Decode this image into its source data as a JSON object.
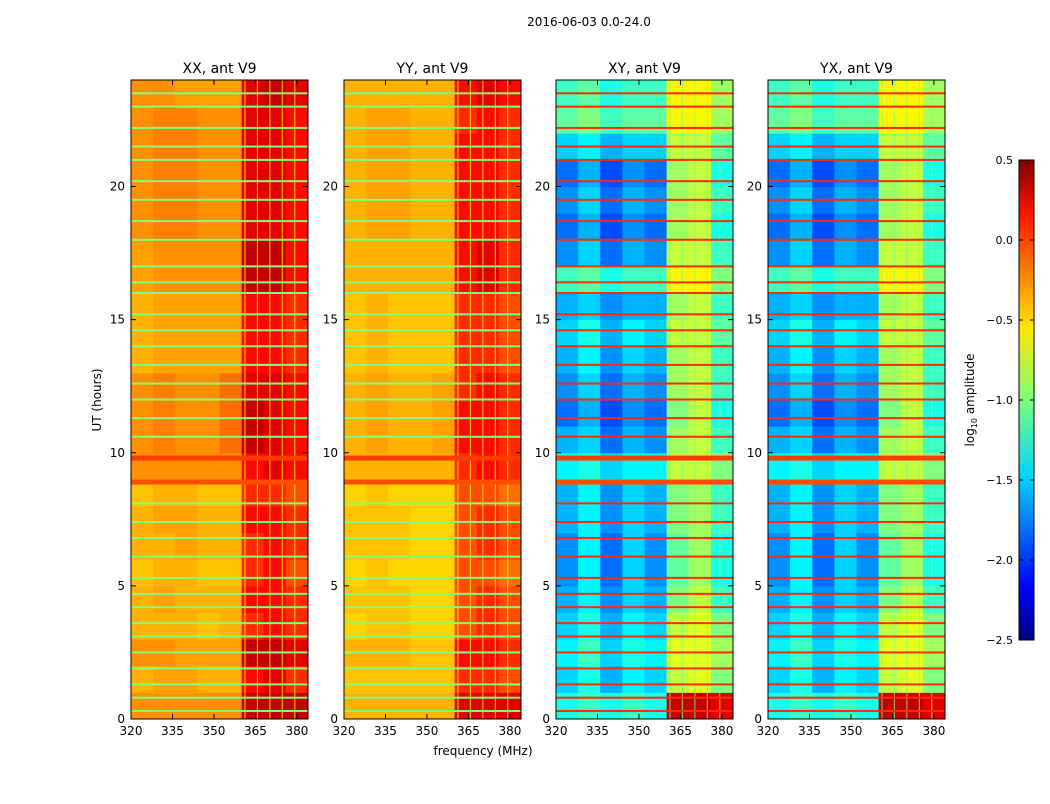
{
  "chart_data": {
    "type": "heatmap",
    "suptitle": "2016-06-03 0.0-24.0",
    "xlabel": "frequency (MHz)",
    "ylabel": "UT (hours)",
    "xlim": [
      320,
      384
    ],
    "ylim": [
      0,
      24
    ],
    "xticks": [
      320,
      335,
      350,
      365,
      380
    ],
    "yticks": [
      0,
      5,
      10,
      15,
      20
    ],
    "freq_bin_edges": [
      320,
      328,
      336,
      344,
      352,
      360,
      368,
      376,
      384
    ],
    "time_bin_hours": 1,
    "line_times": [
      0.3,
      0.8,
      1.3,
      1.9,
      2.5,
      3.1,
      3.6,
      4.2,
      4.7,
      5.3,
      6.1,
      6.8,
      7.4,
      8.1,
      10.6,
      11.3,
      12.0,
      12.6,
      13.3,
      14.0,
      14.6,
      15.2,
      16.0,
      16.4,
      17.0,
      18.0,
      18.7,
      19.5,
      20.2,
      21.0,
      21.5,
      22.2,
      23.0,
      23.5
    ],
    "bands": [
      {
        "t": 8.9,
        "value": -0.1
      },
      {
        "t": 9.8,
        "value": -0.05
      }
    ],
    "colorbar": {
      "label": "log10 amplitude",
      "label_main": "log",
      "label_sub": "10",
      "label_rest": " amplitude",
      "range": [
        -2.5,
        0.5
      ],
      "ticks": [
        "0.5",
        "0.0",
        "−0.5",
        "−1.0",
        "−1.5",
        "−2.0",
        "−2.5"
      ],
      "tick_values": [
        0.5,
        0.0,
        -0.5,
        -1.0,
        -1.5,
        -2.0,
        -2.5
      ],
      "colormap": "jet"
    },
    "panels": [
      {
        "title": "XX, ant V9",
        "line_value": -1.0,
        "rows": [
          [
            -0.3,
            -0.3,
            -0.3,
            -0.3,
            -0.3,
            0.3,
            0.3,
            0.3
          ],
          [
            -0.4,
            -0.35,
            -0.35,
            -0.4,
            -0.4,
            0.1,
            0.2,
            0.0
          ],
          [
            -0.3,
            -0.3,
            -0.35,
            -0.35,
            -0.35,
            0.3,
            0.3,
            0.2
          ],
          [
            -0.4,
            -0.4,
            -0.4,
            -0.45,
            -0.4,
            0.0,
            0.1,
            0.0
          ],
          [
            -0.4,
            -0.35,
            -0.4,
            -0.4,
            -0.4,
            0.1,
            0.1,
            0.0
          ],
          [
            -0.45,
            -0.4,
            -0.4,
            -0.45,
            -0.45,
            0.0,
            0.1,
            -0.1
          ],
          [
            -0.4,
            -0.4,
            -0.35,
            -0.4,
            -0.4,
            0.0,
            0.1,
            0.0
          ],
          [
            -0.4,
            -0.35,
            -0.35,
            -0.4,
            -0.4,
            0.1,
            0.1,
            0.0
          ],
          [
            -0.45,
            -0.4,
            -0.4,
            -0.45,
            -0.45,
            0.0,
            0.0,
            -0.1
          ],
          [
            -0.3,
            -0.3,
            -0.3,
            -0.3,
            -0.3,
            0.1,
            0.2,
            0.1
          ],
          [
            -0.3,
            -0.25,
            -0.3,
            -0.3,
            -0.2,
            0.3,
            0.2,
            0.1
          ],
          [
            -0.3,
            -0.25,
            -0.3,
            -0.3,
            -0.2,
            0.3,
            0.2,
            0.1
          ],
          [
            -0.3,
            -0.25,
            -0.3,
            -0.3,
            -0.2,
            0.2,
            0.2,
            0.1
          ],
          [
            -0.4,
            -0.35,
            -0.35,
            -0.35,
            -0.35,
            0.1,
            0.1,
            0.0
          ],
          [
            -0.4,
            -0.35,
            -0.35,
            -0.35,
            -0.35,
            0.1,
            0.1,
            0.0
          ],
          [
            -0.4,
            -0.35,
            -0.35,
            -0.35,
            -0.35,
            0.1,
            0.1,
            0.0
          ],
          [
            -0.35,
            -0.3,
            -0.3,
            -0.3,
            -0.3,
            0.3,
            0.3,
            0.1
          ],
          [
            -0.35,
            -0.3,
            -0.3,
            -0.3,
            -0.3,
            0.3,
            0.3,
            0.1
          ],
          [
            -0.3,
            -0.25,
            -0.25,
            -0.3,
            -0.3,
            0.2,
            0.2,
            0.1
          ],
          [
            -0.3,
            -0.25,
            -0.25,
            -0.3,
            -0.3,
            0.2,
            0.2,
            0.1
          ],
          [
            -0.3,
            -0.25,
            -0.25,
            -0.3,
            -0.3,
            0.2,
            0.2,
            0.1
          ],
          [
            -0.3,
            -0.25,
            -0.25,
            -0.3,
            -0.3,
            0.2,
            0.2,
            0.1
          ],
          [
            -0.3,
            -0.25,
            -0.25,
            -0.3,
            -0.3,
            0.2,
            0.2,
            0.1
          ],
          [
            -0.3,
            -0.3,
            -0.35,
            -0.35,
            -0.35,
            0.2,
            0.3,
            0.2
          ]
        ]
      },
      {
        "title": "YY, ant V9",
        "line_value": -1.0,
        "rows": [
          [
            -0.4,
            -0.4,
            -0.4,
            -0.4,
            -0.4,
            0.2,
            0.2,
            0.2
          ],
          [
            -0.45,
            -0.45,
            -0.45,
            -0.45,
            -0.45,
            0.0,
            0.0,
            -0.1
          ],
          [
            -0.4,
            -0.4,
            -0.4,
            -0.45,
            -0.45,
            0.1,
            0.1,
            0.0
          ],
          [
            -0.5,
            -0.45,
            -0.45,
            -0.5,
            -0.5,
            -0.1,
            0.0,
            -0.1
          ],
          [
            -0.45,
            -0.45,
            -0.45,
            -0.5,
            -0.5,
            -0.1,
            0.0,
            -0.1
          ],
          [
            -0.5,
            -0.45,
            -0.5,
            -0.5,
            -0.5,
            -0.1,
            -0.1,
            -0.2
          ],
          [
            -0.45,
            -0.45,
            -0.45,
            -0.5,
            -0.5,
            -0.1,
            0.0,
            -0.1
          ],
          [
            -0.45,
            -0.45,
            -0.45,
            -0.5,
            -0.5,
            -0.1,
            0.0,
            -0.1
          ],
          [
            -0.5,
            -0.45,
            -0.5,
            -0.5,
            -0.5,
            -0.1,
            -0.1,
            -0.2
          ],
          [
            -0.4,
            -0.4,
            -0.4,
            -0.4,
            -0.4,
            0.0,
            0.1,
            0.0
          ],
          [
            -0.4,
            -0.35,
            -0.4,
            -0.4,
            -0.35,
            0.1,
            0.1,
            0.0
          ],
          [
            -0.4,
            -0.35,
            -0.4,
            -0.4,
            -0.35,
            0.1,
            0.1,
            0.0
          ],
          [
            -0.4,
            -0.35,
            -0.4,
            -0.4,
            -0.35,
            0.0,
            0.1,
            0.0
          ],
          [
            -0.45,
            -0.4,
            -0.45,
            -0.45,
            -0.45,
            0.0,
            0.0,
            -0.1
          ],
          [
            -0.45,
            -0.4,
            -0.45,
            -0.45,
            -0.45,
            0.0,
            0.0,
            -0.1
          ],
          [
            -0.45,
            -0.4,
            -0.45,
            -0.45,
            -0.45,
            0.0,
            0.0,
            -0.1
          ],
          [
            -0.4,
            -0.4,
            -0.4,
            -0.4,
            -0.4,
            0.1,
            0.2,
            0.0
          ],
          [
            -0.4,
            -0.4,
            -0.4,
            -0.4,
            -0.4,
            0.1,
            0.2,
            0.0
          ],
          [
            -0.4,
            -0.35,
            -0.35,
            -0.4,
            -0.4,
            0.1,
            0.1,
            0.0
          ],
          [
            -0.4,
            -0.35,
            -0.35,
            -0.4,
            -0.4,
            0.1,
            0.1,
            0.0
          ],
          [
            -0.4,
            -0.35,
            -0.35,
            -0.4,
            -0.4,
            0.1,
            0.1,
            0.0
          ],
          [
            -0.4,
            -0.35,
            -0.35,
            -0.4,
            -0.4,
            0.1,
            0.1,
            0.0
          ],
          [
            -0.4,
            -0.35,
            -0.35,
            -0.4,
            -0.4,
            0.0,
            0.1,
            0.0
          ],
          [
            -0.4,
            -0.4,
            -0.4,
            -0.4,
            -0.4,
            0.1,
            0.2,
            0.1
          ]
        ]
      },
      {
        "title": "XY, ant V9",
        "line_value": 0.0,
        "rows": [
          [
            -1.3,
            -1.2,
            -1.3,
            -1.2,
            -1.3,
            0.3,
            0.3,
            0.2
          ],
          [
            -1.5,
            -1.3,
            -1.6,
            -1.4,
            -1.5,
            -0.8,
            -0.7,
            -1.0
          ],
          [
            -1.4,
            -1.2,
            -1.5,
            -1.3,
            -1.4,
            -0.7,
            -0.7,
            -0.9
          ],
          [
            -1.5,
            -1.3,
            -1.6,
            -1.4,
            -1.5,
            -0.8,
            -0.7,
            -1.0
          ],
          [
            -1.6,
            -1.4,
            -1.7,
            -1.5,
            -1.6,
            -1.0,
            -0.8,
            -1.2
          ],
          [
            -1.7,
            -1.4,
            -1.8,
            -1.5,
            -1.7,
            -1.1,
            -0.9,
            -1.3
          ],
          [
            -1.7,
            -1.4,
            -1.8,
            -1.5,
            -1.7,
            -1.1,
            -0.9,
            -1.3
          ],
          [
            -1.6,
            -1.4,
            -1.7,
            -1.5,
            -1.6,
            -1.0,
            -0.9,
            -1.2
          ],
          [
            -1.6,
            -1.4,
            -1.7,
            -1.5,
            -1.6,
            -1.0,
            -0.9,
            -1.2
          ],
          [
            -1.4,
            -1.3,
            -1.5,
            -1.4,
            -1.4,
            -0.8,
            -0.8,
            -1.0
          ],
          [
            -1.6,
            -1.5,
            -1.8,
            -1.6,
            -1.7,
            -0.9,
            -0.8,
            -1.2
          ],
          [
            -1.8,
            -1.6,
            -1.9,
            -1.7,
            -1.8,
            -1.0,
            -0.8,
            -1.3
          ],
          [
            -1.7,
            -1.5,
            -1.8,
            -1.6,
            -1.7,
            -0.9,
            -0.8,
            -1.2
          ],
          [
            -1.6,
            -1.4,
            -1.7,
            -1.5,
            -1.6,
            -0.9,
            -0.8,
            -1.2
          ],
          [
            -1.5,
            -1.3,
            -1.6,
            -1.4,
            -1.5,
            -0.8,
            -0.8,
            -1.1
          ],
          [
            -1.6,
            -1.5,
            -1.7,
            -1.6,
            -1.6,
            -0.9,
            -0.8,
            -1.2
          ],
          [
            -1.2,
            -1.1,
            -1.3,
            -1.2,
            -1.2,
            -0.6,
            -0.6,
            -1.0
          ],
          [
            -1.7,
            -1.5,
            -1.8,
            -1.6,
            -1.7,
            -0.8,
            -0.8,
            -1.2
          ],
          [
            -1.8,
            -1.6,
            -1.9,
            -1.7,
            -1.8,
            -0.9,
            -0.8,
            -1.3
          ],
          [
            -1.7,
            -1.5,
            -1.8,
            -1.6,
            -1.7,
            -0.9,
            -0.8,
            -1.2
          ],
          [
            -1.8,
            -1.6,
            -1.9,
            -1.7,
            -1.8,
            -0.9,
            -0.8,
            -1.3
          ],
          [
            -1.5,
            -1.4,
            -1.6,
            -1.5,
            -1.5,
            -0.8,
            -0.8,
            -1.1
          ],
          [
            -1.1,
            -1.0,
            -1.2,
            -1.1,
            -1.1,
            -0.6,
            -0.6,
            -0.9
          ],
          [
            -1.2,
            -1.1,
            -1.3,
            -1.2,
            -1.2,
            -0.6,
            -0.6,
            -0.9
          ]
        ]
      },
      {
        "title": "YX, ant V9",
        "line_value": 0.0,
        "rows": [
          [
            -1.3,
            -1.2,
            -1.3,
            -1.2,
            -1.3,
            0.3,
            0.3,
            0.2
          ],
          [
            -1.5,
            -1.3,
            -1.6,
            -1.4,
            -1.5,
            -0.8,
            -0.7,
            -1.0
          ],
          [
            -1.4,
            -1.2,
            -1.5,
            -1.3,
            -1.4,
            -0.7,
            -0.7,
            -0.9
          ],
          [
            -1.5,
            -1.3,
            -1.6,
            -1.4,
            -1.5,
            -0.8,
            -0.7,
            -1.0
          ],
          [
            -1.6,
            -1.4,
            -1.7,
            -1.5,
            -1.6,
            -1.0,
            -0.8,
            -1.2
          ],
          [
            -1.7,
            -1.4,
            -1.8,
            -1.5,
            -1.7,
            -1.1,
            -0.9,
            -1.3
          ],
          [
            -1.7,
            -1.4,
            -1.8,
            -1.5,
            -1.7,
            -1.1,
            -0.9,
            -1.3
          ],
          [
            -1.6,
            -1.4,
            -1.7,
            -1.5,
            -1.6,
            -1.0,
            -0.9,
            -1.2
          ],
          [
            -1.6,
            -1.4,
            -1.7,
            -1.5,
            -1.6,
            -1.0,
            -0.9,
            -1.2
          ],
          [
            -1.4,
            -1.3,
            -1.5,
            -1.4,
            -1.4,
            -0.8,
            -0.8,
            -1.0
          ],
          [
            -1.6,
            -1.5,
            -1.8,
            -1.6,
            -1.7,
            -0.9,
            -0.8,
            -1.2
          ],
          [
            -1.8,
            -1.6,
            -1.9,
            -1.7,
            -1.8,
            -1.0,
            -0.8,
            -1.3
          ],
          [
            -1.7,
            -1.5,
            -1.8,
            -1.6,
            -1.7,
            -0.9,
            -0.8,
            -1.2
          ],
          [
            -1.6,
            -1.4,
            -1.7,
            -1.5,
            -1.6,
            -0.9,
            -0.8,
            -1.2
          ],
          [
            -1.5,
            -1.3,
            -1.6,
            -1.4,
            -1.5,
            -0.8,
            -0.8,
            -1.1
          ],
          [
            -1.6,
            -1.5,
            -1.7,
            -1.6,
            -1.6,
            -0.9,
            -0.8,
            -1.2
          ],
          [
            -1.2,
            -1.1,
            -1.3,
            -1.2,
            -1.2,
            -0.6,
            -0.6,
            -1.0
          ],
          [
            -1.7,
            -1.5,
            -1.8,
            -1.6,
            -1.7,
            -0.8,
            -0.8,
            -1.2
          ],
          [
            -1.8,
            -1.6,
            -1.9,
            -1.7,
            -1.8,
            -0.9,
            -0.8,
            -1.3
          ],
          [
            -1.7,
            -1.5,
            -1.8,
            -1.6,
            -1.7,
            -0.9,
            -0.8,
            -1.2
          ],
          [
            -1.8,
            -1.6,
            -1.9,
            -1.7,
            -1.8,
            -0.9,
            -0.8,
            -1.3
          ],
          [
            -1.5,
            -1.4,
            -1.6,
            -1.5,
            -1.5,
            -0.8,
            -0.8,
            -1.1
          ],
          [
            -1.1,
            -1.0,
            -1.2,
            -1.1,
            -1.1,
            -0.6,
            -0.6,
            -0.9
          ],
          [
            -1.2,
            -1.1,
            -1.3,
            -1.2,
            -1.2,
            -0.6,
            -0.6,
            -0.9
          ]
        ]
      }
    ]
  }
}
